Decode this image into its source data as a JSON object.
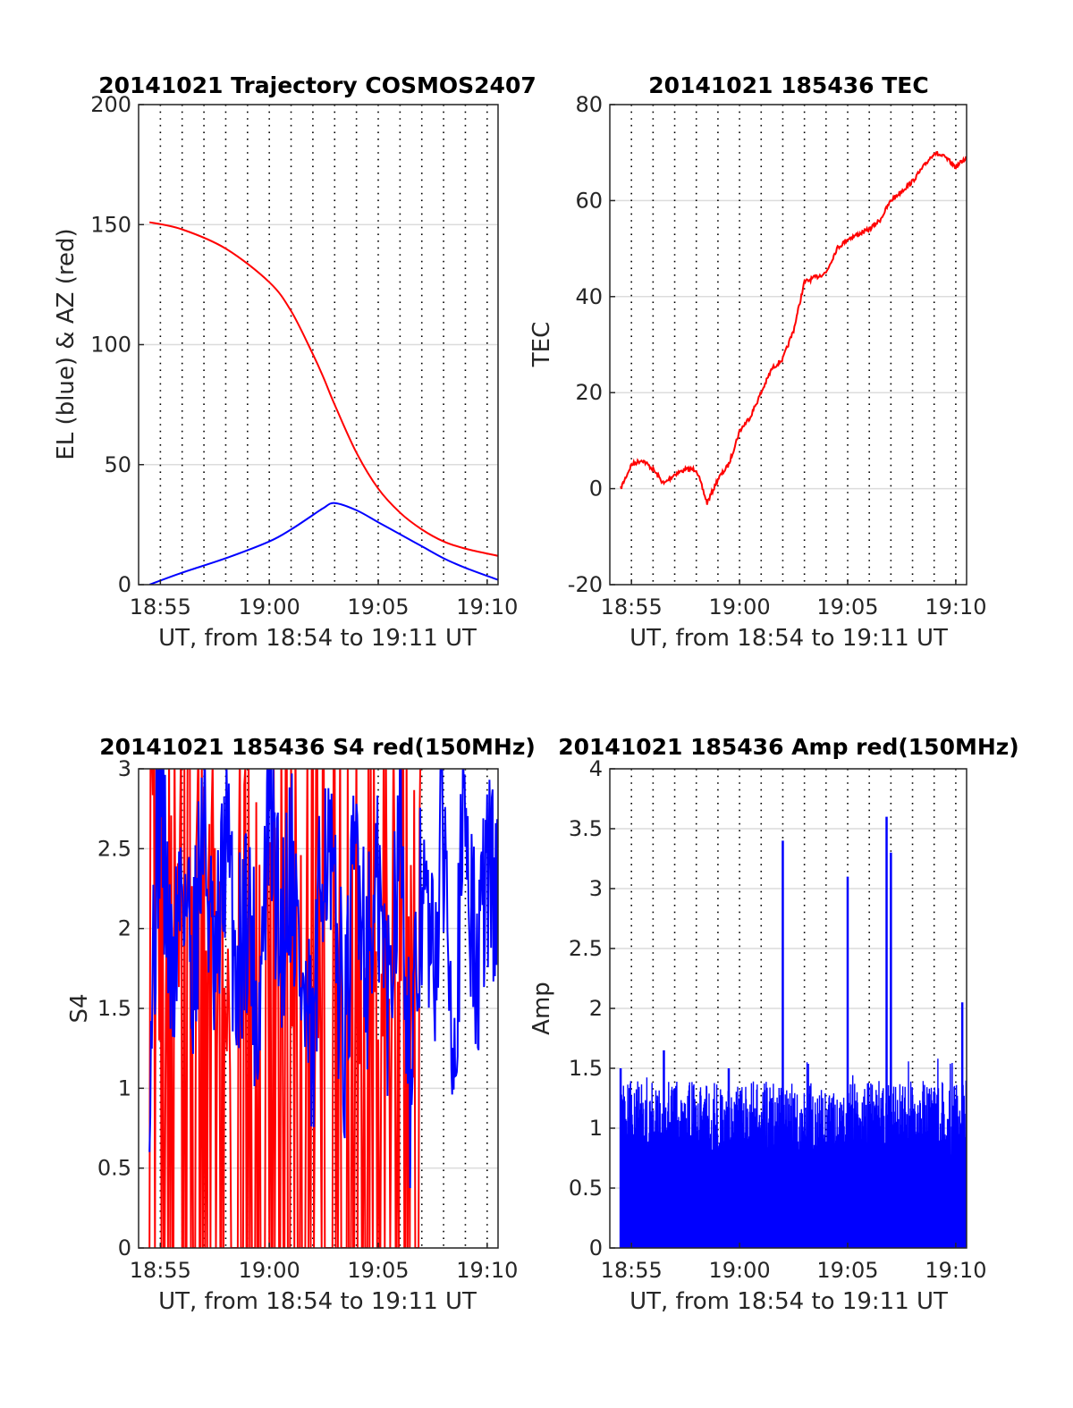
{
  "chart_data": [
    {
      "type": "line",
      "title": "20141021 Trajectory COSMOS2407",
      "xlabel": "UT, from 18:54 to 19:11 UT",
      "ylabel": "EL (blue) & AZ (red)",
      "x_ticks": [
        "18:55",
        "19:00",
        "19:05",
        "19:10"
      ],
      "y_ticks": [
        "0",
        "50",
        "100",
        "150",
        "200"
      ],
      "xlim_minutes": [
        0,
        16.5
      ],
      "ylim": [
        0,
        200
      ],
      "grid": "x dotted, y solid light",
      "series": [
        {
          "name": "AZ",
          "color": "#ff0000",
          "x_minutes": [
            0.5,
            2,
            4,
            6,
            7,
            8,
            8.5,
            9,
            10,
            11,
            12,
            13,
            14,
            15,
            16.5
          ],
          "y": [
            151,
            148,
            140,
            126,
            114,
            96,
            86,
            75,
            55,
            40,
            30,
            23,
            18,
            15,
            12
          ]
        },
        {
          "name": "EL",
          "color": "#0000ff",
          "x_minutes": [
            0.5,
            2,
            4,
            6,
            7,
            8,
            8.5,
            9,
            10,
            11,
            12,
            13,
            14,
            15,
            16.5
          ],
          "y": [
            0,
            5,
            11,
            18,
            23,
            29,
            32,
            34,
            31,
            26,
            21,
            16,
            11,
            7,
            2
          ]
        }
      ]
    },
    {
      "type": "line",
      "title": "20141021 185436 TEC",
      "xlabel": "UT, from 18:54 to 19:11 UT",
      "ylabel": "TEC",
      "x_ticks": [
        "18:55",
        "19:00",
        "19:05",
        "19:10"
      ],
      "y_ticks": [
        "-20",
        "0",
        "20",
        "40",
        "60",
        "80"
      ],
      "xlim_minutes": [
        0,
        16.5
      ],
      "ylim": [
        -20,
        80
      ],
      "series": [
        {
          "name": "TEC",
          "color": "#ff0000",
          "x_minutes": [
            0.5,
            1,
            1.5,
            2,
            2.5,
            3,
            3.5,
            4,
            4.5,
            5,
            5.5,
            6,
            6.5,
            7,
            7.5,
            8,
            8.5,
            9,
            9.5,
            10,
            10.5,
            11,
            11.5,
            12,
            12.5,
            13,
            13.5,
            14,
            14.5,
            15,
            15.5,
            16,
            16.5
          ],
          "y": [
            0,
            5,
            6,
            4,
            1,
            3,
            4,
            4,
            -3,
            2,
            5,
            12,
            15,
            20,
            25,
            27,
            33,
            43,
            44,
            45,
            50,
            52,
            53,
            54,
            56,
            60,
            62,
            64,
            67,
            70,
            69,
            67,
            69
          ]
        }
      ]
    },
    {
      "type": "line",
      "title": "20141021 185436 S4 red(150MHz)",
      "xlabel": "UT, from 18:54 to 19:11 UT",
      "ylabel": "S4",
      "x_ticks": [
        "18:55",
        "19:00",
        "19:05",
        "19:10"
      ],
      "y_ticks": [
        "0",
        "0.5",
        "1",
        "1.5",
        "2",
        "2.5",
        "3"
      ],
      "xlim_minutes": [
        0,
        16.5
      ],
      "ylim": [
        0,
        3
      ],
      "series": [
        {
          "color": "#ff0000",
          "x_minutes": [
            0.5,
            1,
            1.5,
            2,
            2.5,
            3,
            3.5,
            4,
            4.5,
            5,
            5.5,
            6,
            6.5,
            7,
            7.5,
            8,
            8.5,
            9,
            9.5,
            10,
            10.5,
            11,
            11.5,
            12,
            12.5,
            13
          ],
          "y": [
            2.2,
            3,
            0,
            2.8,
            0,
            3,
            1.5,
            0,
            2.5,
            0,
            3,
            0,
            1.8,
            2.6,
            0,
            3,
            0.5,
            0,
            2.8,
            0,
            3,
            0,
            1.9,
            2.4,
            0,
            0
          ]
        },
        {
          "color": "#0000ff",
          "x_minutes": [
            0.5,
            1,
            1.5,
            2,
            2.5,
            3,
            3.5,
            4,
            4.5,
            5,
            5.5,
            6,
            6.5,
            7,
            7.5,
            8,
            8.5,
            9,
            9.5,
            10,
            10.5,
            11,
            11.5,
            12,
            12.5,
            13,
            13.5,
            14,
            14.5,
            15,
            15.5,
            16,
            16.5
          ],
          "y": [
            1.3,
            2.9,
            1.6,
            2.4,
            1.8,
            2.7,
            1.5,
            2.6,
            1.7,
            2.2,
            1.4,
            2.8,
            1.9,
            2.5,
            1.6,
            1.1,
            2.7,
            2.0,
            1.3,
            2.6,
            1.8,
            2.2,
            1.5,
            2.9,
            0.9,
            2.3,
            1.7,
            2.6,
            1.4,
            2.8,
            1.6,
            2.4,
            2.2
          ]
        }
      ]
    },
    {
      "type": "line",
      "title": "20141021 185436 Amp red(150MHz)",
      "xlabel": "UT, from 18:54 to 19:11 UT",
      "ylabel": "Amp",
      "x_ticks": [
        "18:55",
        "19:00",
        "19:05",
        "19:10"
      ],
      "y_ticks": [
        "0",
        "0.5",
        "1",
        "1.5",
        "2",
        "2.5",
        "3",
        "3.5",
        "4"
      ],
      "xlim_minutes": [
        0,
        16.5
      ],
      "ylim": [
        0,
        4
      ],
      "series": [
        {
          "color": "#0000ff",
          "peaks": [
            {
              "x_minutes": 0.5,
              "y": 1.5
            },
            {
              "x_minutes": 2.5,
              "y": 1.65
            },
            {
              "x_minutes": 5.5,
              "y": 1.5
            },
            {
              "x_minutes": 8.0,
              "y": 3.4
            },
            {
              "x_minutes": 11.0,
              "y": 3.1
            },
            {
              "x_minutes": 12.8,
              "y": 3.6
            },
            {
              "x_minutes": 13.0,
              "y": 3.3
            },
            {
              "x_minutes": 16.3,
              "y": 2.05
            }
          ],
          "baseline_max": 1.4
        }
      ]
    }
  ]
}
